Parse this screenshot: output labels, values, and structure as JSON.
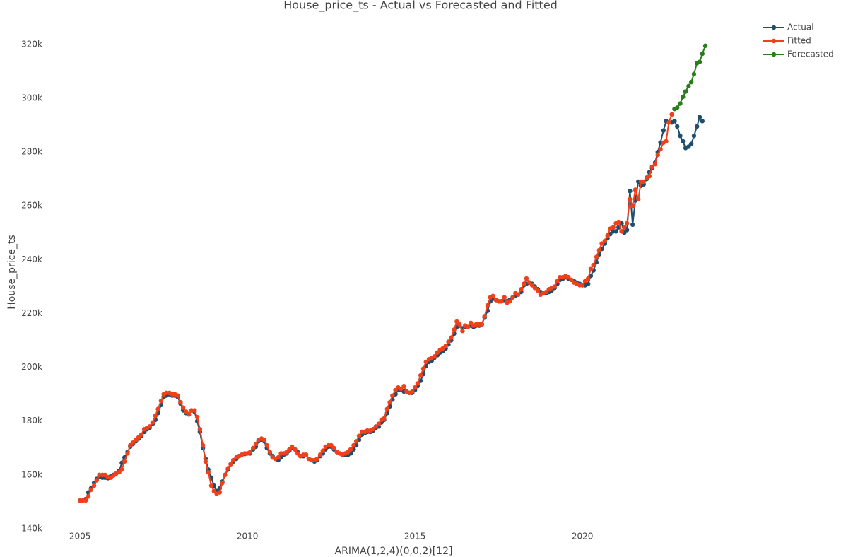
{
  "chart_data": {
    "type": "line",
    "title": "House_price_ts - Actual vs Forecasted and Fitted",
    "x_label": "ARIMA(1,2,4)(0,0,2)[12]",
    "y_label": "House_price_ts",
    "xlim": [
      2004.3,
      2024.45
    ],
    "xticks": [
      2005,
      2010,
      2015,
      2020
    ],
    "ylim": [
      140000,
      326000
    ],
    "yticks": [
      {
        "value": 140000,
        "label": "140k"
      },
      {
        "value": 160000,
        "label": "160k"
      },
      {
        "value": 180000,
        "label": "180k"
      },
      {
        "value": 200000,
        "label": "200k"
      },
      {
        "value": 220000,
        "label": "220k"
      },
      {
        "value": 240000,
        "label": "240k"
      },
      {
        "value": 260000,
        "label": "260k"
      },
      {
        "value": 280000,
        "label": "280k"
      },
      {
        "value": 300000,
        "label": "300k"
      },
      {
        "value": 320000,
        "label": "320k"
      }
    ],
    "grid": false,
    "legend": "top-right",
    "series": [
      {
        "name": "Actual",
        "color": "#1f4e6e",
        "x": [
          2005,
          2005.08,
          2005.17,
          2005.25,
          2005.33,
          2005.42,
          2005.5,
          2005.58,
          2005.67,
          2005.75,
          2005.83,
          2005.92,
          2006,
          2006.08,
          2006.17,
          2006.25,
          2006.33,
          2006.42,
          2006.5,
          2006.58,
          2006.67,
          2006.75,
          2006.83,
          2006.92,
          2007,
          2007.08,
          2007.17,
          2007.25,
          2007.33,
          2007.42,
          2007.5,
          2007.58,
          2007.67,
          2007.75,
          2007.83,
          2007.92,
          2008,
          2008.08,
          2008.17,
          2008.25,
          2008.33,
          2008.42,
          2008.5,
          2008.58,
          2008.67,
          2008.75,
          2008.83,
          2008.92,
          2009,
          2009.08,
          2009.17,
          2009.25,
          2009.33,
          2009.42,
          2009.5,
          2009.58,
          2009.67,
          2009.75,
          2009.83,
          2009.92,
          2010,
          2010.08,
          2010.17,
          2010.25,
          2010.33,
          2010.42,
          2010.5,
          2010.58,
          2010.67,
          2010.75,
          2010.83,
          2010.92,
          2011,
          2011.08,
          2011.17,
          2011.25,
          2011.33,
          2011.42,
          2011.5,
          2011.58,
          2011.67,
          2011.75,
          2011.83,
          2011.92,
          2012,
          2012.08,
          2012.17,
          2012.25,
          2012.33,
          2012.42,
          2012.5,
          2012.58,
          2012.67,
          2012.75,
          2012.83,
          2012.92,
          2013,
          2013.08,
          2013.17,
          2013.25,
          2013.33,
          2013.42,
          2013.5,
          2013.58,
          2013.67,
          2013.75,
          2013.83,
          2013.92,
          2014,
          2014.08,
          2014.17,
          2014.25,
          2014.33,
          2014.42,
          2014.5,
          2014.58,
          2014.67,
          2014.75,
          2014.83,
          2014.92,
          2015,
          2015.08,
          2015.17,
          2015.25,
          2015.33,
          2015.42,
          2015.5,
          2015.58,
          2015.67,
          2015.75,
          2015.83,
          2015.92,
          2016,
          2016.08,
          2016.17,
          2016.25,
          2016.33,
          2016.42,
          2016.5,
          2016.58,
          2016.67,
          2016.75,
          2016.83,
          2016.92,
          2017,
          2017.08,
          2017.17,
          2017.25,
          2017.33,
          2017.42,
          2017.5,
          2017.58,
          2017.67,
          2017.75,
          2017.83,
          2017.92,
          2018,
          2018.08,
          2018.17,
          2018.25,
          2018.33,
          2018.42,
          2018.5,
          2018.58,
          2018.67,
          2018.75,
          2018.83,
          2018.92,
          2019,
          2019.08,
          2019.17,
          2019.25,
          2019.33,
          2019.42,
          2019.5,
          2019.58,
          2019.67,
          2019.75,
          2019.83,
          2019.92,
          2020,
          2020.08,
          2020.17,
          2020.25,
          2020.33,
          2020.42,
          2020.5,
          2020.58,
          2020.67,
          2020.75,
          2020.83,
          2020.92,
          2021,
          2021.08,
          2021.17,
          2021.25,
          2021.33,
          2021.42,
          2021.5,
          2021.58,
          2021.67,
          2021.75,
          2021.83,
          2021.92,
          2022,
          2022.08,
          2022.17,
          2022.25,
          2022.33,
          2022.42,
          2022.5,
          2022.58,
          2022.67,
          2022.75,
          2022.83,
          2022.92,
          2023,
          2023.08,
          2023.17,
          2023.25,
          2023.33,
          2023.42,
          2023.5,
          2023.58
        ],
        "values": [
          150500,
          150500,
          151000,
          153500,
          155000,
          157000,
          158500,
          159500,
          159000,
          159000,
          158800,
          159500,
          160000,
          160500,
          161500,
          164500,
          166500,
          168500,
          170500,
          171500,
          172500,
          173500,
          174500,
          176000,
          177000,
          177500,
          179000,
          180500,
          183000,
          186000,
          189000,
          189500,
          190000,
          189500,
          189500,
          189000,
          186500,
          184000,
          183000,
          182500,
          184000,
          183500,
          180000,
          176000,
          170000,
          166000,
          162000,
          159000,
          156000,
          154000,
          155000,
          157500,
          160000,
          162000,
          164000,
          165000,
          166000,
          167000,
          167500,
          167800,
          168000,
          168000,
          169500,
          170500,
          172500,
          173000,
          172500,
          170000,
          168000,
          167000,
          166000,
          165500,
          166500,
          167500,
          168000,
          169000,
          170000,
          169500,
          168500,
          167000,
          167000,
          167500,
          166000,
          165500,
          165000,
          165500,
          167000,
          168000,
          169500,
          170500,
          170500,
          169500,
          168500,
          168000,
          167500,
          167500,
          167500,
          168000,
          169500,
          171000,
          173000,
          175000,
          175500,
          176000,
          176000,
          176500,
          177500,
          178000,
          179500,
          180500,
          183000,
          185500,
          188000,
          190000,
          191500,
          191500,
          191000,
          191000,
          190500,
          190500,
          191500,
          193000,
          195000,
          197500,
          200500,
          202000,
          202500,
          203500,
          204500,
          205500,
          206000,
          207000,
          208500,
          210000,
          212500,
          215000,
          215500,
          214500,
          215000,
          215000,
          215500,
          215000,
          215500,
          215500,
          216000,
          218500,
          221000,
          224500,
          225500,
          225000,
          224500,
          224500,
          225000,
          224500,
          225000,
          226000,
          226500,
          227000,
          228000,
          230500,
          231000,
          231500,
          231000,
          230000,
          229000,
          228000,
          227500,
          227500,
          228000,
          228500,
          229500,
          231000,
          232500,
          233000,
          233500,
          233000,
          232500,
          232000,
          231500,
          231000,
          230500,
          230500,
          231000,
          234000,
          236000,
          239000,
          242000,
          244000,
          246000,
          248000,
          249500,
          250500,
          250500,
          252000,
          253500,
          250000,
          251000,
          265500,
          253000,
          262000,
          269000,
          267500,
          268000,
          270000,
          272500,
          274000,
          276000,
          280000,
          283500,
          288000,
          291500,
          291000,
          291000,
          291500,
          289500,
          286000,
          284000,
          281500,
          282000,
          283000,
          286000,
          289500,
          293000,
          291500
        ]
      },
      {
        "name": "Fitted",
        "color": "#f0401a",
        "x": [
          2005,
          2005.08,
          2005.17,
          2005.25,
          2005.33,
          2005.42,
          2005.5,
          2005.58,
          2005.67,
          2005.75,
          2005.83,
          2005.92,
          2006,
          2006.08,
          2006.17,
          2006.25,
          2006.33,
          2006.42,
          2006.5,
          2006.58,
          2006.67,
          2006.75,
          2006.83,
          2006.92,
          2007,
          2007.08,
          2007.17,
          2007.25,
          2007.33,
          2007.42,
          2007.5,
          2007.58,
          2007.67,
          2007.75,
          2007.83,
          2007.92,
          2008,
          2008.08,
          2008.17,
          2008.25,
          2008.33,
          2008.42,
          2008.5,
          2008.58,
          2008.67,
          2008.75,
          2008.83,
          2008.92,
          2009,
          2009.08,
          2009.17,
          2009.25,
          2009.33,
          2009.42,
          2009.5,
          2009.58,
          2009.67,
          2009.75,
          2009.83,
          2009.92,
          2010,
          2010.08,
          2010.17,
          2010.25,
          2010.33,
          2010.42,
          2010.5,
          2010.58,
          2010.67,
          2010.75,
          2010.83,
          2010.92,
          2011,
          2011.08,
          2011.17,
          2011.25,
          2011.33,
          2011.42,
          2011.5,
          2011.58,
          2011.67,
          2011.75,
          2011.83,
          2011.92,
          2012,
          2012.08,
          2012.17,
          2012.25,
          2012.33,
          2012.42,
          2012.5,
          2012.58,
          2012.67,
          2012.75,
          2012.83,
          2012.92,
          2013,
          2013.08,
          2013.17,
          2013.25,
          2013.33,
          2013.42,
          2013.5,
          2013.58,
          2013.67,
          2013.75,
          2013.83,
          2013.92,
          2014,
          2014.08,
          2014.17,
          2014.25,
          2014.33,
          2014.42,
          2014.5,
          2014.58,
          2014.67,
          2014.75,
          2014.83,
          2014.92,
          2015,
          2015.08,
          2015.17,
          2015.25,
          2015.33,
          2015.42,
          2015.5,
          2015.58,
          2015.67,
          2015.75,
          2015.83,
          2015.92,
          2016,
          2016.08,
          2016.17,
          2016.25,
          2016.33,
          2016.42,
          2016.5,
          2016.58,
          2016.67,
          2016.75,
          2016.83,
          2016.92,
          2017,
          2017.08,
          2017.17,
          2017.25,
          2017.33,
          2017.42,
          2017.5,
          2017.58,
          2017.67,
          2017.75,
          2017.83,
          2017.92,
          2018,
          2018.08,
          2018.17,
          2018.25,
          2018.33,
          2018.42,
          2018.5,
          2018.58,
          2018.67,
          2018.75,
          2018.83,
          2018.92,
          2019,
          2019.08,
          2019.17,
          2019.25,
          2019.33,
          2019.42,
          2019.5,
          2019.58,
          2019.67,
          2019.75,
          2019.83,
          2019.92,
          2020,
          2020.08,
          2020.17,
          2020.25,
          2020.33,
          2020.42,
          2020.5,
          2020.58,
          2020.67,
          2020.75,
          2020.83,
          2020.92,
          2021,
          2021.08,
          2021.17,
          2021.25,
          2021.33,
          2021.42,
          2021.5,
          2021.58,
          2021.67,
          2021.75,
          2021.83,
          2021.92,
          2022,
          2022.08,
          2022.17,
          2022.25,
          2022.33,
          2022.42,
          2022.5,
          2022.58,
          2022.67
        ],
        "values": [
          150500,
          150500,
          150500,
          152000,
          154500,
          156000,
          158000,
          160000,
          160000,
          160000,
          159200,
          159000,
          159800,
          160500,
          161000,
          162000,
          165000,
          168000,
          171000,
          172000,
          173000,
          174000,
          175000,
          177000,
          177500,
          178000,
          179500,
          182000,
          184500,
          187500,
          190000,
          190500,
          190500,
          190000,
          190000,
          189500,
          187000,
          185000,
          183500,
          182500,
          184000,
          184000,
          181500,
          177000,
          171000,
          165000,
          161000,
          156000,
          154000,
          153000,
          153500,
          157000,
          160000,
          162500,
          164000,
          165500,
          166500,
          167000,
          167500,
          168000,
          168000,
          168500,
          170000,
          171500,
          173000,
          173500,
          173000,
          171000,
          168500,
          166500,
          166000,
          166500,
          168000,
          168000,
          168500,
          169500,
          170500,
          169500,
          168000,
          167000,
          167500,
          167500,
          166000,
          165500,
          165500,
          166000,
          167500,
          169000,
          170500,
          171000,
          171000,
          170000,
          168500,
          168000,
          167500,
          168000,
          168500,
          169500,
          171000,
          172500,
          174500,
          176000,
          176000,
          176500,
          176500,
          177000,
          178000,
          179000,
          180500,
          181000,
          184500,
          187000,
          189500,
          191500,
          192500,
          192000,
          193000,
          191000,
          190500,
          191000,
          192500,
          194000,
          197000,
          199500,
          202000,
          203000,
          203500,
          204000,
          205500,
          206500,
          207000,
          208000,
          209500,
          211000,
          214000,
          217000,
          216000,
          213500,
          215500,
          215000,
          216500,
          215500,
          216000,
          216000,
          216000,
          219000,
          223000,
          226000,
          226500,
          225000,
          224500,
          224500,
          226000,
          224000,
          224500,
          226000,
          227500,
          227000,
          229000,
          231000,
          233000,
          231500,
          230500,
          229500,
          228500,
          227000,
          227500,
          228000,
          229000,
          229500,
          230000,
          232000,
          233500,
          233500,
          234000,
          233500,
          232500,
          231500,
          231000,
          230500,
          230500,
          232000,
          233000,
          236500,
          238000,
          241000,
          243500,
          246000,
          247000,
          249000,
          251500,
          252000,
          253500,
          254000,
          250500,
          252000,
          253500,
          262500,
          260000,
          266000,
          262500,
          269000,
          269000,
          270500,
          271000,
          274500,
          275500,
          279000,
          281000,
          283500,
          284000,
          291000,
          294000
        ]
      },
      {
        "name": "Forecasted",
        "color": "#2a7d1c",
        "x": [
          2022.75,
          2022.83,
          2022.92,
          2023,
          2023.08,
          2023.17,
          2023.25,
          2023.33,
          2023.42,
          2023.5,
          2023.58,
          2023.67
        ],
        "values": [
          296000,
          296500,
          298000,
          300500,
          302500,
          304500,
          306000,
          309000,
          313000,
          313500,
          316500,
          319500
        ]
      }
    ]
  }
}
